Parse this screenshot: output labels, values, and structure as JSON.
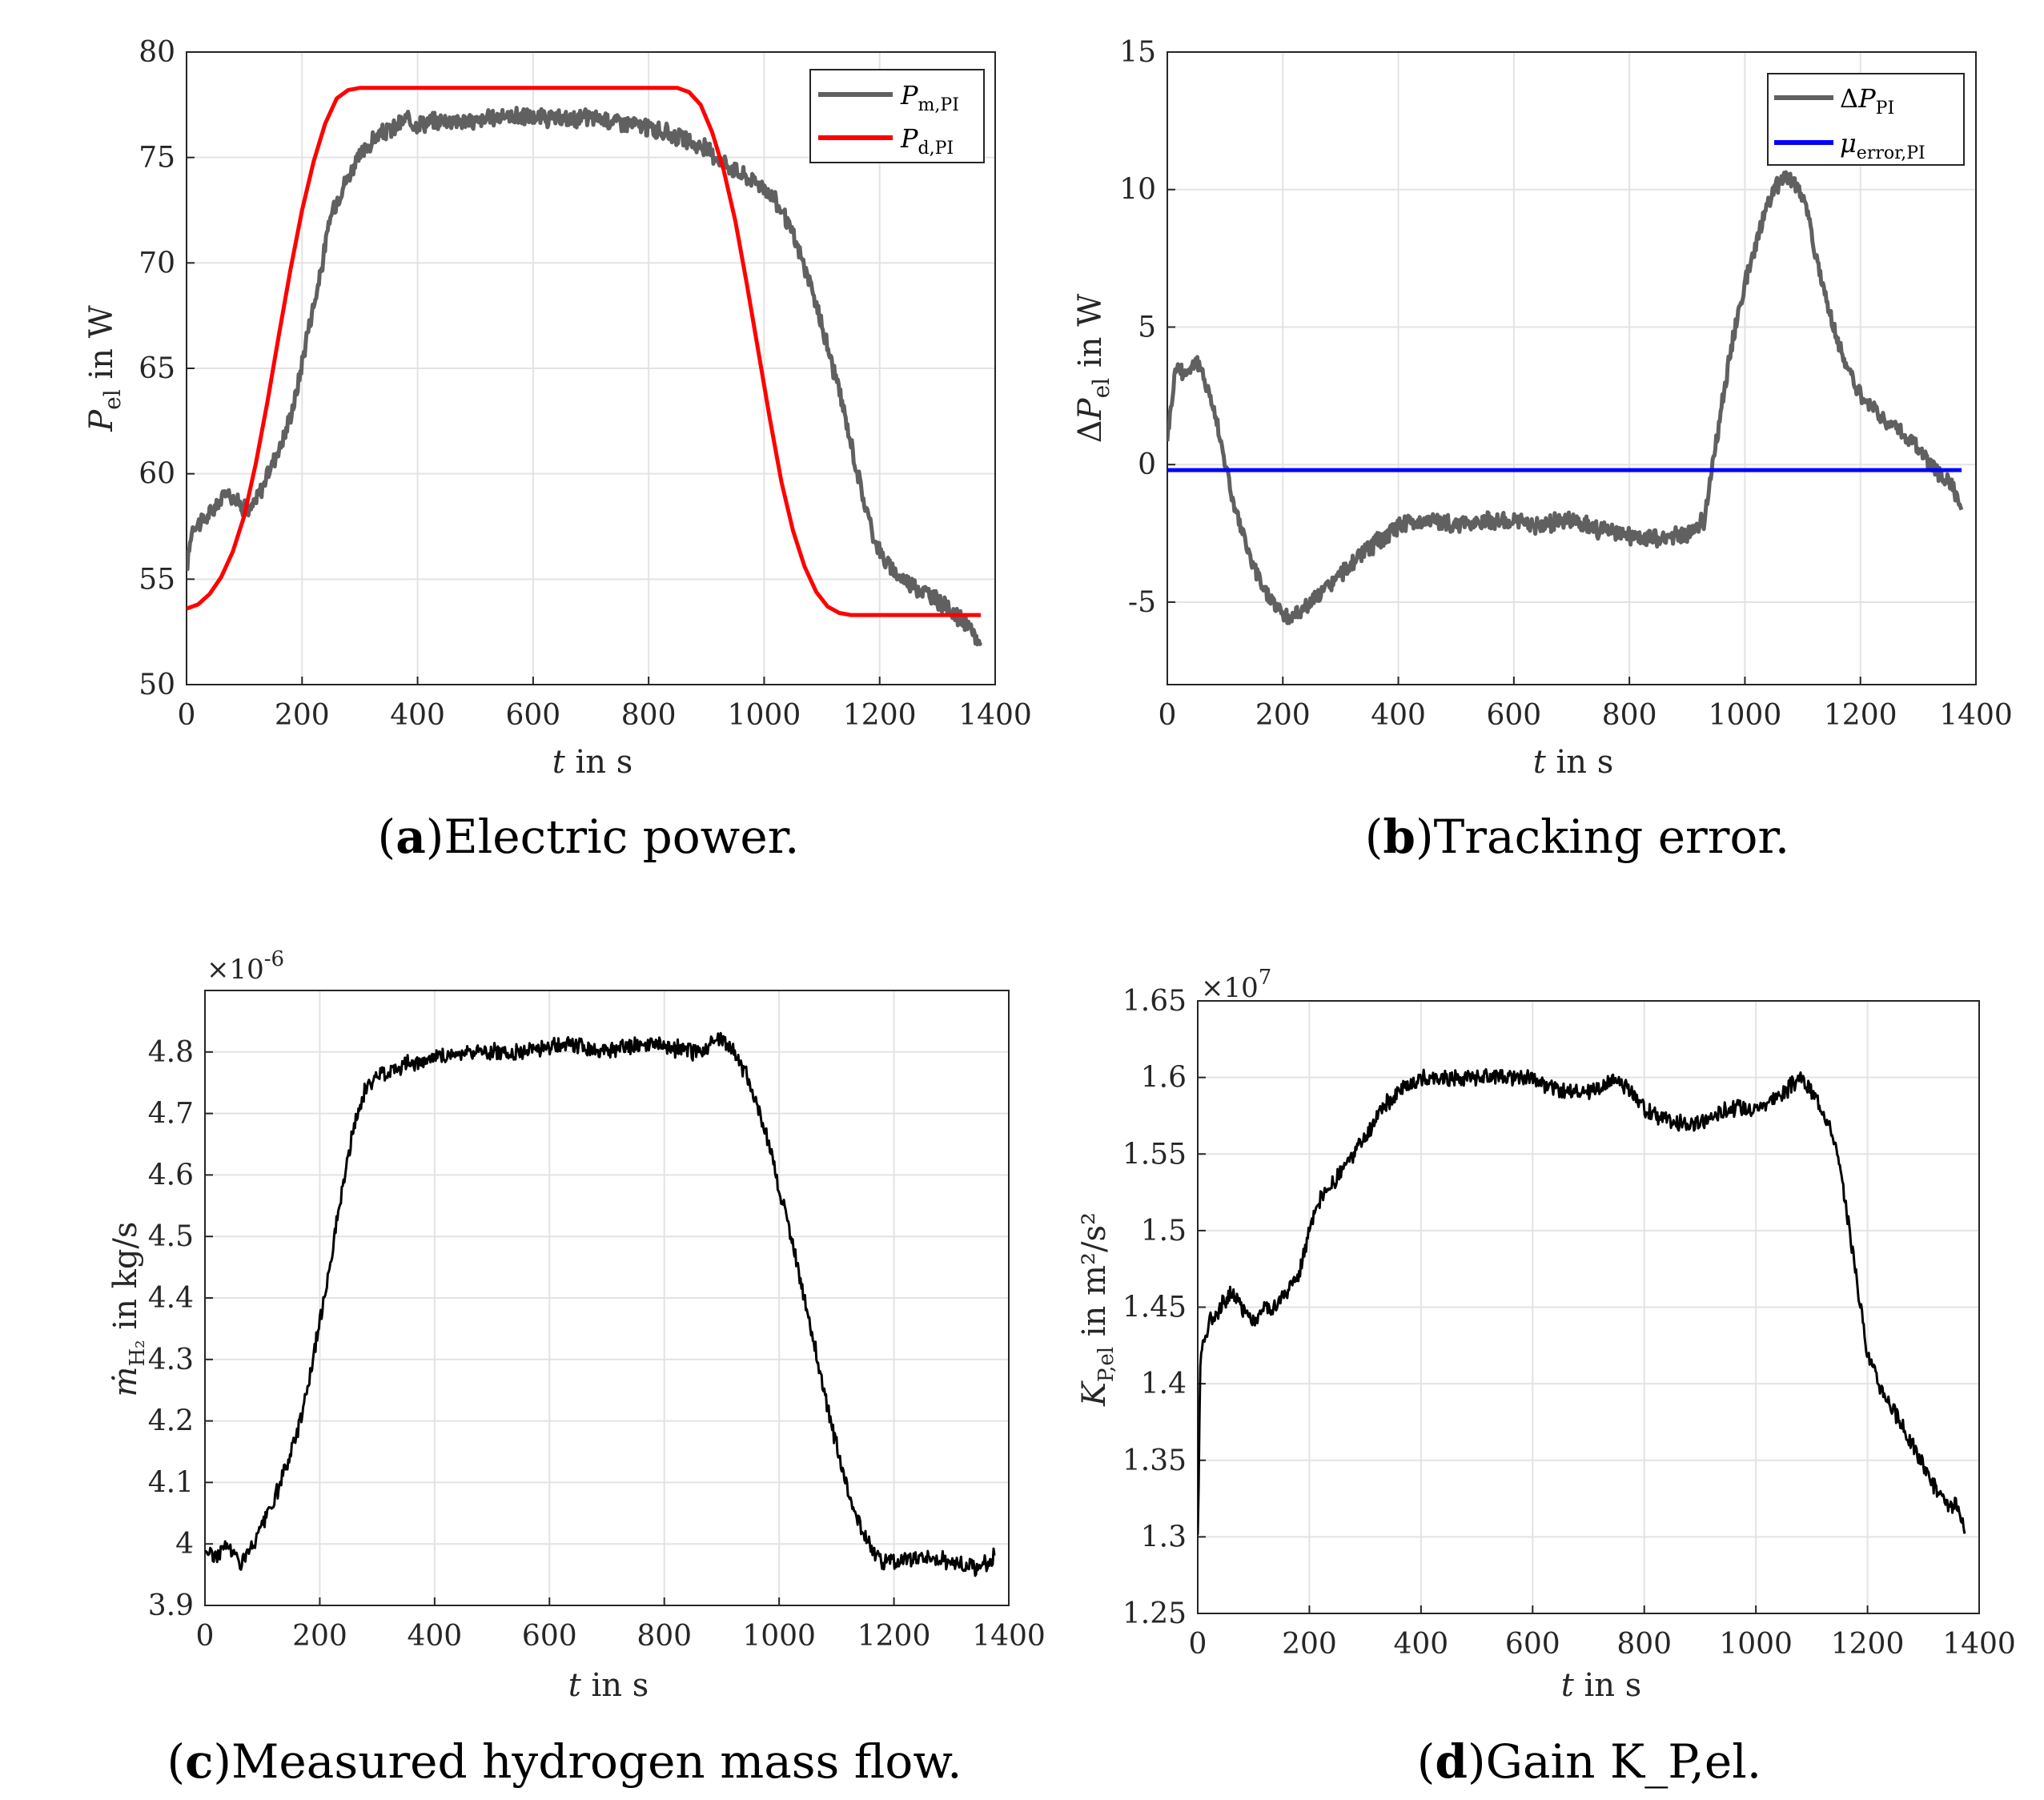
{
  "chart_data": [
    {
      "id": "a",
      "type": "line",
      "caption_label": "a",
      "caption_text": "Electric power.",
      "xlabel": "t in s",
      "ylabel": "P_el in W",
      "xlim": [
        0,
        1400
      ],
      "ylim": [
        50,
        80
      ],
      "xticks": [
        "0",
        "200",
        "400",
        "600",
        "800",
        "1000",
        "1200",
        "1400"
      ],
      "yticks": [
        "50",
        "55",
        "60",
        "65",
        "70",
        "75",
        "80"
      ],
      "legend_position": "top-right",
      "grid": true,
      "series": [
        {
          "name": "P_m,PI",
          "color": "#606060",
          "x": [
            0,
            10,
            30,
            50,
            70,
            90,
            110,
            130,
            150,
            170,
            190,
            210,
            230,
            250,
            270,
            290,
            310,
            330,
            360,
            380,
            400,
            450,
            500,
            550,
            600,
            650,
            700,
            750,
            800,
            850,
            880,
            900,
            930,
            960,
            990,
            1010,
            1030,
            1050,
            1070,
            1090,
            1110,
            1130,
            1150,
            1170,
            1190,
            1210,
            1230,
            1260,
            1290,
            1320,
            1350,
            1375
          ],
          "y": [
            55.5,
            57.5,
            57.8,
            58.4,
            59.2,
            58.6,
            58.2,
            59.3,
            60.6,
            61.8,
            63.8,
            66.8,
            69.2,
            72.3,
            73.6,
            74.6,
            75.4,
            76.0,
            76.4,
            76.8,
            76.6,
            76.8,
            76.7,
            77.0,
            76.9,
            76.8,
            76.9,
            76.7,
            76.4,
            76.0,
            75.6,
            75.4,
            74.8,
            74.2,
            73.8,
            73.3,
            72.5,
            71.3,
            69.8,
            68.0,
            66.0,
            63.9,
            61.5,
            59.0,
            57.0,
            55.8,
            55.2,
            54.7,
            54.2,
            53.6,
            52.8,
            51.9
          ]
        },
        {
          "name": "P_d,PI",
          "color": "#ff0000",
          "x": [
            0,
            20,
            40,
            60,
            80,
            100,
            120,
            140,
            160,
            180,
            200,
            220,
            240,
            260,
            280,
            300,
            330,
            400,
            500,
            600,
            700,
            800,
            850,
            870,
            890,
            910,
            930,
            950,
            970,
            990,
            1010,
            1030,
            1050,
            1070,
            1090,
            1110,
            1130,
            1150,
            1170,
            1200,
            1300,
            1375
          ],
          "y": [
            53.6,
            53.8,
            54.3,
            55.1,
            56.3,
            58.0,
            60.5,
            63.4,
            66.6,
            69.7,
            72.5,
            74.8,
            76.6,
            77.8,
            78.2,
            78.3,
            78.3,
            78.3,
            78.3,
            78.3,
            78.3,
            78.3,
            78.3,
            78.1,
            77.5,
            76.2,
            74.4,
            72.0,
            69.0,
            65.8,
            62.6,
            59.6,
            57.3,
            55.6,
            54.4,
            53.7,
            53.4,
            53.3,
            53.3,
            53.3,
            53.3,
            53.3
          ]
        }
      ]
    },
    {
      "id": "b",
      "type": "line",
      "caption_label": "b",
      "caption_text": "Tracking error.",
      "xlabel": "t in s",
      "ylabel": "ΔP_el in W",
      "xlim": [
        0,
        1400
      ],
      "ylim": [
        -8,
        15
      ],
      "xticks": [
        "0",
        "200",
        "400",
        "600",
        "800",
        "1000",
        "1200",
        "1400"
      ],
      "ytick_values": [
        -5,
        0,
        5,
        10,
        15
      ],
      "yticks": [
        "-5",
        "0",
        "5",
        "10",
        "15"
      ],
      "legend_position": "top-right",
      "grid": true,
      "series": [
        {
          "name": "ΔP_PI",
          "color": "#606060",
          "x": [
            0,
            15,
            30,
            50,
            70,
            90,
            110,
            130,
            150,
            170,
            190,
            210,
            230,
            250,
            270,
            290,
            320,
            350,
            380,
            400,
            450,
            500,
            550,
            600,
            650,
            700,
            750,
            800,
            850,
            900,
            930,
            950,
            970,
            990,
            1010,
            1030,
            1050,
            1070,
            1090,
            1110,
            1130,
            1150,
            1170,
            1190,
            1210,
            1240,
            1270,
            1300,
            1330,
            1360,
            1375
          ],
          "y": [
            1.0,
            3.6,
            3.3,
            3.8,
            2.8,
            1.2,
            -1.0,
            -2.5,
            -3.8,
            -4.6,
            -5.2,
            -5.6,
            -5.3,
            -5.0,
            -4.6,
            -4.2,
            -3.6,
            -3.0,
            -2.6,
            -2.2,
            -2.0,
            -2.2,
            -2.0,
            -2.1,
            -2.2,
            -2.0,
            -2.4,
            -2.6,
            -2.7,
            -2.5,
            -2.0,
            0.8,
            3.5,
            5.7,
            7.4,
            8.9,
            10.0,
            10.5,
            10.2,
            9.0,
            7.0,
            5.3,
            3.9,
            2.9,
            2.2,
            1.7,
            1.2,
            0.6,
            -0.2,
            -0.8,
            -1.5
          ]
        },
        {
          "name": "μ_error,PI",
          "color": "#0000ff",
          "x": [
            0,
            1375
          ],
          "y": [
            -0.2,
            -0.2
          ]
        }
      ]
    },
    {
      "id": "c",
      "type": "line",
      "caption_label": "c",
      "caption_text": "Measured hydrogen mass flow.",
      "xlabel": "t in s",
      "ylabel": "ṁ_H2 in kg/s",
      "exponent_label": "×10",
      "exponent_power": "-6",
      "xlim": [
        0,
        1400
      ],
      "ylim": [
        3.9,
        4.9
      ],
      "xticks": [
        "0",
        "200",
        "400",
        "600",
        "800",
        "1000",
        "1200",
        "1400"
      ],
      "ytick_values": [
        3.9,
        4.0,
        4.1,
        4.2,
        4.3,
        4.4,
        4.5,
        4.6,
        4.7,
        4.8
      ],
      "yticks": [
        "3.9",
        "4",
        "4.1",
        "4.2",
        "4.3",
        "4.4",
        "4.5",
        "4.6",
        "4.7",
        "4.8"
      ],
      "grid": true,
      "series": [
        {
          "color": "#000000",
          "x": [
            0,
            20,
            40,
            60,
            80,
            100,
            120,
            140,
            160,
            180,
            200,
            220,
            240,
            260,
            280,
            300,
            320,
            350,
            400,
            450,
            500,
            550,
            600,
            650,
            700,
            750,
            800,
            850,
            880,
            900,
            920,
            940,
            960,
            980,
            1000,
            1020,
            1040,
            1060,
            1080,
            1100,
            1120,
            1140,
            1160,
            1180,
            1200,
            1250,
            1300,
            1350,
            1375
          ],
          "y": [
            3.99,
            3.98,
            4.0,
            3.97,
            3.99,
            4.03,
            4.07,
            4.12,
            4.18,
            4.26,
            4.36,
            4.47,
            4.58,
            4.68,
            4.74,
            4.76,
            4.77,
            4.78,
            4.79,
            4.8,
            4.8,
            4.8,
            4.81,
            4.81,
            4.8,
            4.81,
            4.81,
            4.8,
            4.81,
            4.82,
            4.8,
            4.77,
            4.72,
            4.66,
            4.58,
            4.5,
            4.42,
            4.33,
            4.24,
            4.16,
            4.09,
            4.03,
            3.99,
            3.97,
            3.97,
            3.98,
            3.97,
            3.96,
            3.98
          ]
        }
      ]
    },
    {
      "id": "d",
      "type": "line",
      "caption_label": "d",
      "caption_text": "Gain K_P,el.",
      "xlabel": "t in s",
      "ylabel": "K_P,el in m²/s²",
      "exponent_label": "×10",
      "exponent_power": "7",
      "xlim": [
        0,
        1400
      ],
      "ylim": [
        1.25,
        1.65
      ],
      "xticks": [
        "0",
        "200",
        "400",
        "600",
        "800",
        "1000",
        "1200",
        "1400"
      ],
      "ytick_values": [
        1.25,
        1.3,
        1.35,
        1.4,
        1.45,
        1.5,
        1.55,
        1.6,
        1.65
      ],
      "yticks": [
        "1.25",
        "1.3",
        "1.35",
        "1.4",
        "1.45",
        "1.5",
        "1.55",
        "1.6",
        "1.65"
      ],
      "grid": true,
      "series": [
        {
          "color": "#000000",
          "x": [
            0,
            5,
            20,
            40,
            60,
            80,
            100,
            120,
            140,
            160,
            180,
            200,
            220,
            240,
            260,
            280,
            300,
            330,
            360,
            400,
            450,
            500,
            550,
            600,
            650,
            700,
            750,
            800,
            850,
            900,
            950,
            1000,
            1050,
            1080,
            1100,
            1120,
            1140,
            1160,
            1180,
            1200,
            1220,
            1250,
            1280,
            1310,
            1340,
            1360,
            1375
          ],
          "y": [
            1.3,
            1.42,
            1.44,
            1.45,
            1.46,
            1.45,
            1.44,
            1.45,
            1.45,
            1.46,
            1.47,
            1.5,
            1.52,
            1.53,
            1.54,
            1.55,
            1.56,
            1.58,
            1.59,
            1.6,
            1.6,
            1.6,
            1.6,
            1.6,
            1.59,
            1.59,
            1.6,
            1.58,
            1.57,
            1.57,
            1.58,
            1.58,
            1.59,
            1.6,
            1.59,
            1.58,
            1.56,
            1.52,
            1.47,
            1.42,
            1.4,
            1.38,
            1.36,
            1.34,
            1.32,
            1.32,
            1.3
          ]
        }
      ]
    }
  ]
}
